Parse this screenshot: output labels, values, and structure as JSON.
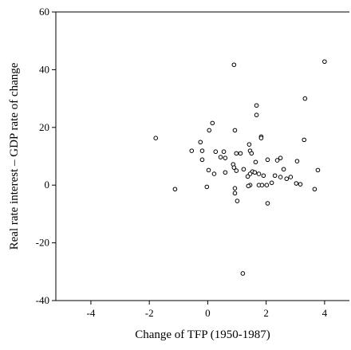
{
  "chart_data": {
    "type": "scatter",
    "x_label": "Change of TFP (1950-1987)",
    "y_label": "Real rate interest – GDP rate of change",
    "xlim": [
      -5.2,
      4.85
    ],
    "ylim": [
      -40,
      60
    ],
    "xticks": [
      -4,
      -2,
      0,
      2,
      4
    ],
    "yticks": [
      -40,
      -20,
      0,
      20,
      40,
      60
    ],
    "color": "#000000",
    "x": [
      0.9,
      4.0,
      3.33,
      1.67,
      1.67,
      0.16,
      0.05,
      0.93,
      1.83,
      1.83,
      3.3,
      -0.25,
      -1.78,
      1.42,
      -0.55,
      -0.19,
      0.27,
      0.55,
      0.98,
      1.12,
      1.45,
      1.5,
      0.44,
      0.6,
      -0.19,
      2.05,
      2.38,
      2.49,
      3.06,
      1.64,
      0.87,
      0.9,
      1.23,
      0.03,
      0.22,
      0.6,
      0.98,
      2.6,
      3.77,
      1.53,
      1.61,
      1.45,
      1.75,
      1.91,
      1.37,
      2.3,
      2.49,
      2.7,
      2.84,
      3.17,
      3.03,
      2.19,
      2.02,
      1.75,
      1.45,
      1.39,
      0.93,
      -0.03,
      -1.12,
      3.66,
      0.93,
      1.01,
      2.05,
      1.2,
      1.86
    ],
    "values": [
      41.7,
      42.8,
      30,
      27.6,
      24.3,
      21.5,
      19,
      19,
      16.8,
      16.3,
      15.7,
      14.9,
      16.3,
      14.1,
      11.9,
      11.9,
      11.6,
      11.6,
      11,
      11,
      11.9,
      11,
      9.7,
      9.4,
      8.8,
      8.8,
      8.6,
      9.4,
      8.3,
      8,
      7.2,
      6.1,
      5.5,
      5.2,
      3.9,
      4.4,
      5,
      5.5,
      5.2,
      4.7,
      4.4,
      3.9,
      3.9,
      3.3,
      3,
      3.3,
      2.8,
      2.2,
      2.8,
      0.3,
      0.6,
      0.8,
      0,
      0,
      0,
      -0.3,
      -1.1,
      -0.6,
      -1.4,
      -1.4,
      -2.8,
      -5.5,
      -6.3,
      -30.6,
      0
    ]
  }
}
